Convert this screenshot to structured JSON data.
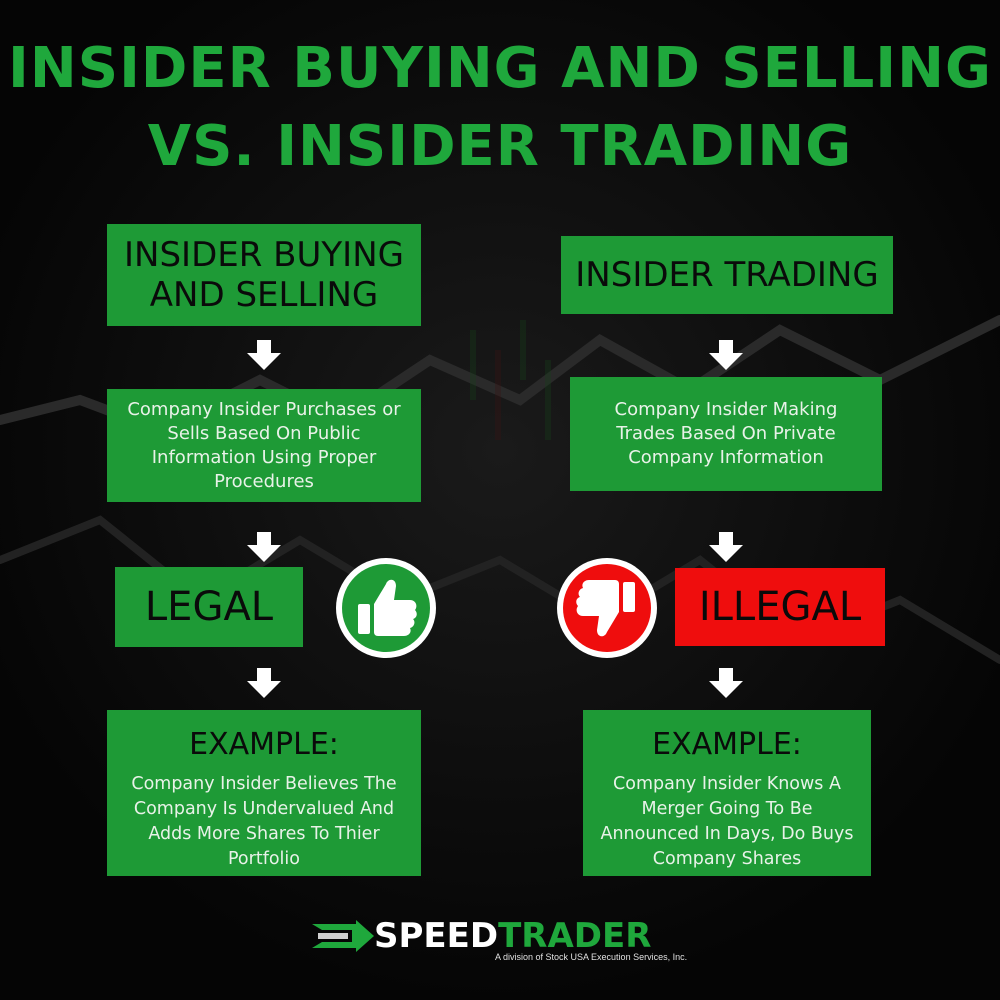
{
  "title": {
    "line1": "INSIDER BUYING AND SELLING",
    "line2": "VS. INSIDER TRADING"
  },
  "left": {
    "heading": "INSIDER BUYING AND SELLING",
    "description": "Company Insider Purchases or Sells Based On Public Information Using Proper Procedures",
    "verdict": "LEGAL",
    "example_heading": "EXAMPLE:",
    "example_text": "Company Insider Believes The Company Is Undervalued And Adds More Shares To Thier Portfolio"
  },
  "right": {
    "heading": "INSIDER TRADING",
    "description": "Company Insider Making Trades Based On Private Company Information",
    "verdict": "ILLEGAL",
    "example_heading": "EXAMPLE:",
    "example_text": "Company Insider Knows A Merger Going To Be Announced In Days, Do Buys Company Shares"
  },
  "icons": {
    "thumbs_up": "thumbs-up-icon",
    "thumbs_down": "thumbs-down-icon",
    "arrow": "arrow-down-icon"
  },
  "logo": {
    "brand_part1": "SPEED",
    "brand_part2": "TRADER",
    "tagline": "A division of Stock USA Execution Services, Inc."
  },
  "colors": {
    "title_green": "#1fa83c",
    "box_green": "#1e9a36",
    "illegal_red": "#ef0d0d",
    "background": "#060606"
  }
}
